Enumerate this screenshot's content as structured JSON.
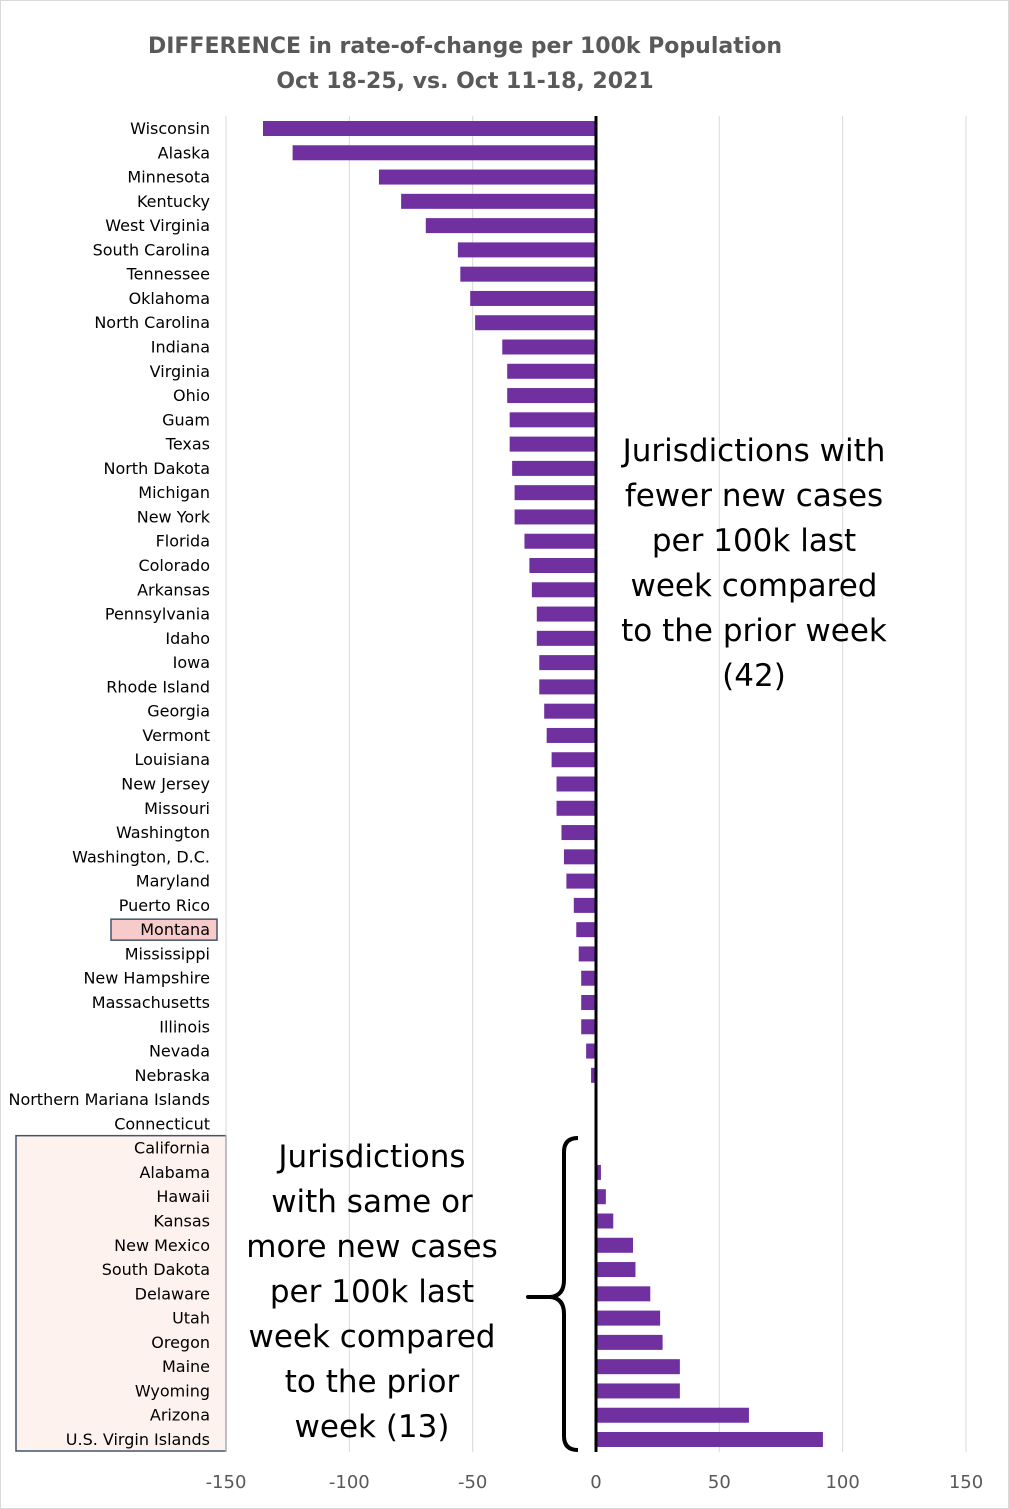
{
  "chart_data": {
    "type": "bar",
    "orientation": "horizontal",
    "title": "DIFFERENCE in rate-of-change per 100k Population",
    "subtitle": "Oct 18-25, vs. Oct 11-18, 2021",
    "xlim": [
      -150,
      150
    ],
    "xticks": [
      -150,
      -100,
      -50,
      0,
      50,
      100,
      150
    ],
    "grid": true,
    "highlight": [
      "Montana"
    ],
    "categories": [
      "Wisconsin",
      "Alaska",
      "Minnesota",
      "Kentucky",
      "West Virginia",
      "South Carolina",
      "Tennessee",
      "Oklahoma",
      "North Carolina",
      "Indiana",
      "Virginia",
      "Ohio",
      "Guam",
      "Texas",
      "North Dakota",
      "Michigan",
      "New York",
      "Florida",
      "Colorado",
      "Arkansas",
      "Pennsylvania",
      "Idaho",
      "Iowa",
      "Rhode Island",
      "Georgia",
      "Vermont",
      "Louisiana",
      "New Jersey",
      "Missouri",
      "Washington",
      "Washington, D.C.",
      "Maryland",
      "Puerto Rico",
      "Montana",
      "Mississippi",
      "New Hampshire",
      "Massachusetts",
      "Illinois",
      "Nevada",
      "Nebraska",
      "Northern Mariana Islands",
      "Connecticut",
      "California",
      "Alabama",
      "Hawaii",
      "Kansas",
      "New Mexico",
      "South Dakota",
      "Delaware",
      "Utah",
      "Oregon",
      "Maine",
      "Wyoming",
      "Arizona",
      "U.S. Virgin Islands"
    ],
    "values": [
      -135,
      -123,
      -88,
      -79,
      -69,
      -56,
      -55,
      -51,
      -49,
      -38,
      -36,
      -36,
      -35,
      -35,
      -34,
      -33,
      -33,
      -29,
      -27,
      -26,
      -24,
      -24,
      -23,
      -23,
      -21,
      -20,
      -18,
      -16,
      -16,
      -14,
      -13,
      -12,
      -9,
      -8,
      -7,
      -6,
      -6,
      -6,
      -4,
      -2,
      -0.5,
      -0.5,
      0,
      2,
      4,
      7,
      15,
      16,
      22,
      26,
      27,
      34,
      34,
      62,
      92
    ],
    "bar_color": "#7030a0"
  },
  "annotations": {
    "fewer": [
      "Jurisdictions with",
      "fewer new cases",
      "per 100k last",
      "week compared",
      "to the prior week",
      "(42)"
    ],
    "more": [
      "Jurisdictions",
      "with same or",
      "more new cases",
      "per 100k last",
      "week compared",
      "to the prior",
      "week (13)"
    ]
  }
}
